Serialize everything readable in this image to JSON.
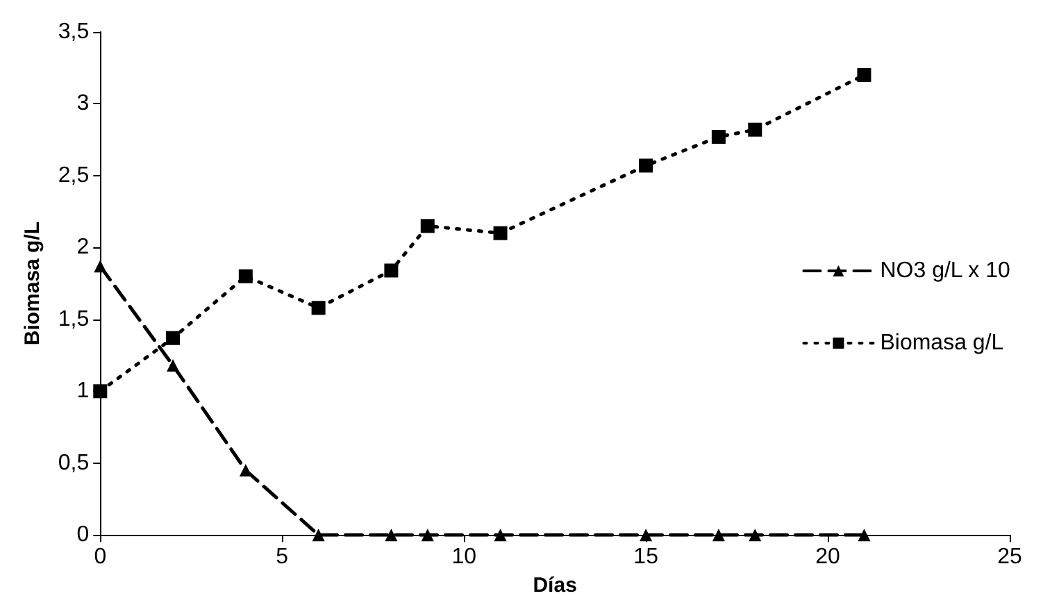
{
  "chart_data": {
    "type": "line",
    "xlabel": "Días",
    "ylabel": "Biomasa g/L",
    "xlim": [
      0,
      25
    ],
    "xticks": [
      0,
      5,
      10,
      15,
      20,
      25
    ],
    "ylim": [
      0,
      3.5
    ],
    "yticks": [
      0,
      {
        "value": 0.5,
        "label": "0,5"
      },
      1,
      {
        "value": 1.5,
        "label": "1,5"
      },
      2,
      {
        "value": 2.5,
        "label": "2,5"
      },
      3,
      {
        "value": 3.5,
        "label": "3,5"
      }
    ],
    "grid": false,
    "legend": "right",
    "series": [
      {
        "name": "NO3 g/L x 10",
        "color": "#000000",
        "marker": "triangle",
        "line_style": "dashed",
        "x": [
          0,
          2,
          4,
          6,
          8,
          9,
          11,
          15,
          17,
          18,
          21
        ],
        "values": [
          1.87,
          1.18,
          0.45,
          0,
          0,
          0,
          0,
          0,
          0,
          0,
          0
        ]
      },
      {
        "name": "Biomasa g/L",
        "color": "#000000",
        "marker": "square",
        "line_style": "dotted",
        "x": [
          0,
          2,
          4,
          6,
          8,
          9,
          11,
          15,
          17,
          18,
          21
        ],
        "values": [
          1.0,
          1.37,
          1.8,
          1.58,
          1.84,
          2.15,
          2.1,
          2.57,
          2.77,
          2.82,
          3.2
        ]
      }
    ]
  }
}
